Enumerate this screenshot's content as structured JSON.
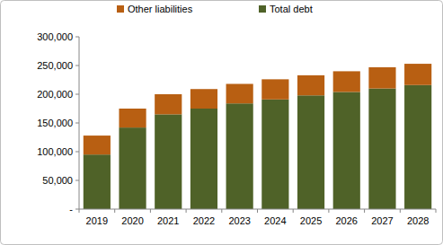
{
  "chart_data": {
    "type": "bar",
    "stacked": true,
    "grid": false,
    "legend": "top",
    "categories": [
      "2019",
      "2020",
      "2021",
      "2022",
      "2023",
      "2024",
      "2025",
      "2026",
      "2027",
      "2028"
    ],
    "series": [
      {
        "name": "Total debt",
        "color": "#4f6228",
        "values": [
          95000,
          142000,
          165000,
          175000,
          184000,
          191000,
          198000,
          204000,
          210000,
          216000
        ]
      },
      {
        "name": "Other liabilities",
        "color": "#b85f12",
        "values": [
          33000,
          33000,
          35000,
          34000,
          34000,
          35000,
          35000,
          36000,
          37000,
          37000
        ]
      }
    ],
    "ylim": [
      0,
      300000
    ],
    "yticks": [
      {
        "value": 0,
        "label": "-"
      },
      {
        "value": 50000,
        "label": "50,000"
      },
      {
        "value": 100000,
        "label": "100,000"
      },
      {
        "value": 150000,
        "label": "150,000"
      },
      {
        "value": 200000,
        "label": "200,000"
      },
      {
        "value": 250000,
        "label": "250,000"
      },
      {
        "value": 300000,
        "label": "300,000"
      }
    ]
  }
}
